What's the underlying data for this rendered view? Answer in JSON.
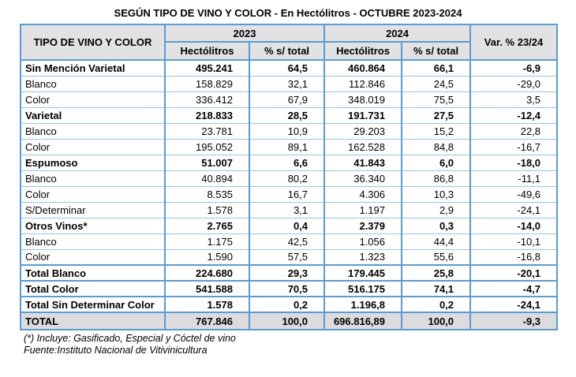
{
  "title": "SEGÚN TIPO DE VINO Y COLOR - En Hectólitros - OCTUBRE 2023-2024",
  "table": {
    "header": {
      "col_tipo": "TIPO DE VINO Y COLOR",
      "year_2023": "2023",
      "year_2024": "2024",
      "var_label": "Var. % 23/24",
      "hectolitros": "Hectólitros",
      "pct_total": "% s/ total"
    },
    "rows": [
      {
        "type": "category",
        "label": "Sin Mención Varietal",
        "h2023": "495.241",
        "p2023": "64,5",
        "h2024": "460.864",
        "p2024": "66,1",
        "var": "-6,9"
      },
      {
        "type": "detail",
        "label": "Blanco",
        "h2023": "158.829",
        "p2023": "32,1",
        "h2024": "112.846",
        "p2024": "24,5",
        "var": "-29,0"
      },
      {
        "type": "detail",
        "label": "Color",
        "h2023": "336.412",
        "p2023": "67,9",
        "h2024": "348.019",
        "p2024": "75,5",
        "var": "3,5"
      },
      {
        "type": "category",
        "label": "Varietal",
        "h2023": "218.833",
        "p2023": "28,5",
        "h2024": "191.731",
        "p2024": "27,5",
        "var": "-12,4"
      },
      {
        "type": "detail",
        "label": "Blanco",
        "h2023": "23.781",
        "p2023": "10,9",
        "h2024": "29.203",
        "p2024": "15,2",
        "var": "22,8"
      },
      {
        "type": "detail",
        "label": "Color",
        "h2023": "195.052",
        "p2023": "89,1",
        "h2024": "162.528",
        "p2024": "84,8",
        "var": "-16,7"
      },
      {
        "type": "category",
        "label": "Espumoso",
        "h2023": "51.007",
        "p2023": "6,6",
        "h2024": "41.843",
        "p2024": "6,0",
        "var": "-18,0"
      },
      {
        "type": "detail",
        "label": "Blanco",
        "h2023": "40.894",
        "p2023": "80,2",
        "h2024": "36.340",
        "p2024": "86,8",
        "var": "-11,1"
      },
      {
        "type": "detail",
        "label": "Color",
        "h2023": "8.535",
        "p2023": "16,7",
        "h2024": "4.306",
        "p2024": "10,3",
        "var": "-49,6"
      },
      {
        "type": "detail",
        "label": "S/Determinar",
        "h2023": "1.578",
        "p2023": "3,1",
        "h2024": "1.197",
        "p2024": "2,9",
        "var": "-24,1"
      },
      {
        "type": "category",
        "label": "Otros Vinos*",
        "h2023": "2.765",
        "p2023": "0,4",
        "h2024": "2.379",
        "p2024": "0,3",
        "var": "-14,0"
      },
      {
        "type": "detail",
        "label": "Blanco",
        "h2023": "1.175",
        "p2023": "42,5",
        "h2024": "1.056",
        "p2024": "44,4",
        "var": "-10,1"
      },
      {
        "type": "detail",
        "label": "Color",
        "h2023": "1.590",
        "p2023": "57,5",
        "h2024": "1.323",
        "p2024": "55,6",
        "var": "-16,8"
      },
      {
        "type": "summary",
        "label": "Total Blanco",
        "h2023": "224.680",
        "p2023": "29,3",
        "h2024": "179.445",
        "p2024": "25,8",
        "var": "-20,1"
      },
      {
        "type": "summary",
        "label": "Total Color",
        "h2023": "541.588",
        "p2023": "70,5",
        "h2024": "516.175",
        "p2024": "74,1",
        "var": "-4,7"
      },
      {
        "type": "summary",
        "label": "Total Sin Determinar Color",
        "h2023": "1.578",
        "p2023": "0,2",
        "h2024": "1.196,8",
        "p2024": "0,2",
        "var": "-24,1"
      },
      {
        "type": "grand-total",
        "label": "TOTAL",
        "h2023": "767.846",
        "p2023": "100,0",
        "h2024": "696.816,89",
        "p2024": "100,0",
        "var": "-9,3"
      }
    ]
  },
  "footnotes": [
    "(*) Incluye: Gasificado, Especial y Cóctel de vino",
    "Fuente:Instituto Nacional de Vitivinicultura"
  ],
  "colors": {
    "border_strong": "#5B9BD5",
    "border_light": "#9DC3E6",
    "header_bg": "#E2E2E2",
    "total_bg": "#DCDCDC"
  }
}
